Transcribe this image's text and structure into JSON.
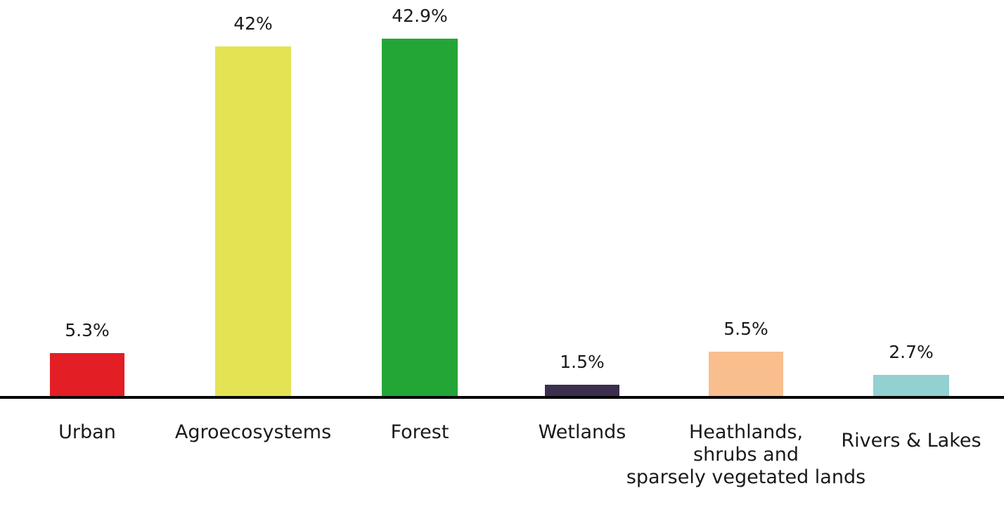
{
  "chart_data": {
    "type": "bar",
    "categories": [
      [
        "Urban"
      ],
      [
        "Agroecosystems"
      ],
      [
        "Forest"
      ],
      [
        "Wetlands"
      ],
      [
        "Heathlands,",
        "shrubs and",
        "sparsely vegetated lands"
      ],
      [
        "Rivers & Lakes"
      ]
    ],
    "values": [
      5.3,
      42,
      42.9,
      1.5,
      5.5,
      2.7
    ],
    "value_labels": [
      "5.3%",
      "42%",
      "42.9%",
      "1.5%",
      "5.5%",
      "2.7%"
    ],
    "colors": [
      "#e31e24",
      "#e4e354",
      "#24a637",
      "#3b2e4f",
      "#f8be8e",
      "#93d0d1"
    ],
    "axis_color": "#000000",
    "grid": false,
    "legend": "none",
    "ylim": [
      0,
      42.9
    ]
  }
}
